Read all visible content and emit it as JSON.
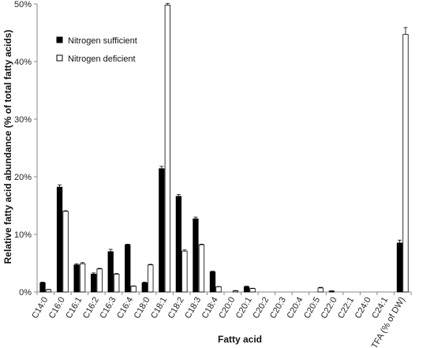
{
  "chart_data": {
    "type": "bar",
    "xlabel": "Fatty acid",
    "ylabel": "Relative fatty acid abundance (% of total fatty acids)",
    "ylim": [
      0,
      50
    ],
    "yticks": [
      0,
      10,
      20,
      30,
      40,
      50
    ],
    "ytick_labels": [
      "0%",
      "10%",
      "20%",
      "30%",
      "40%",
      "50%"
    ],
    "grid": false,
    "legend_position": "top-left",
    "categories": [
      "C14:0",
      "C16:0",
      "C16:1",
      "C16:2",
      "C16:3",
      "C16:4",
      "C18:0",
      "C18:1",
      "C18:2",
      "C18:3",
      "C18:4",
      "C20:0",
      "C20:1",
      "C20:2",
      "C20:3",
      "C20:4",
      "C20:5",
      "C22:0",
      "C22:1",
      "C24:0",
      "C24:1",
      "TFA (% of DW)"
    ],
    "series": [
      {
        "name": "Nitrogen sufficient",
        "color": "#000000",
        "values": [
          1.6,
          18.2,
          4.7,
          3.1,
          7.0,
          8.2,
          1.6,
          21.4,
          16.6,
          12.7,
          3.5,
          0,
          0.9,
          0,
          0,
          0,
          0,
          0.15,
          0,
          0,
          0,
          8.5
        ],
        "errors": [
          0.1,
          0.4,
          0.2,
          0.2,
          0.4,
          0.1,
          0.1,
          0.4,
          0.3,
          0.3,
          0.1,
          0,
          0.1,
          0,
          0,
          0,
          0,
          0.05,
          0,
          0,
          0,
          0.5
        ]
      },
      {
        "name": "Nitrogen deficient",
        "color": "#ffffff",
        "values": [
          0.4,
          14.0,
          4.9,
          4.0,
          3.1,
          1.0,
          4.7,
          49.8,
          7.1,
          8.2,
          0.9,
          0.2,
          0.6,
          0,
          0,
          0,
          0.7,
          0,
          0,
          0,
          0,
          44.7
        ],
        "errors": [
          0.05,
          0.1,
          0.2,
          0.1,
          0.1,
          0.05,
          0.1,
          0.3,
          0.2,
          0.1,
          0.05,
          0.05,
          0.05,
          0,
          0,
          0,
          0.1,
          0,
          0,
          0,
          0,
          1.2
        ]
      }
    ]
  }
}
